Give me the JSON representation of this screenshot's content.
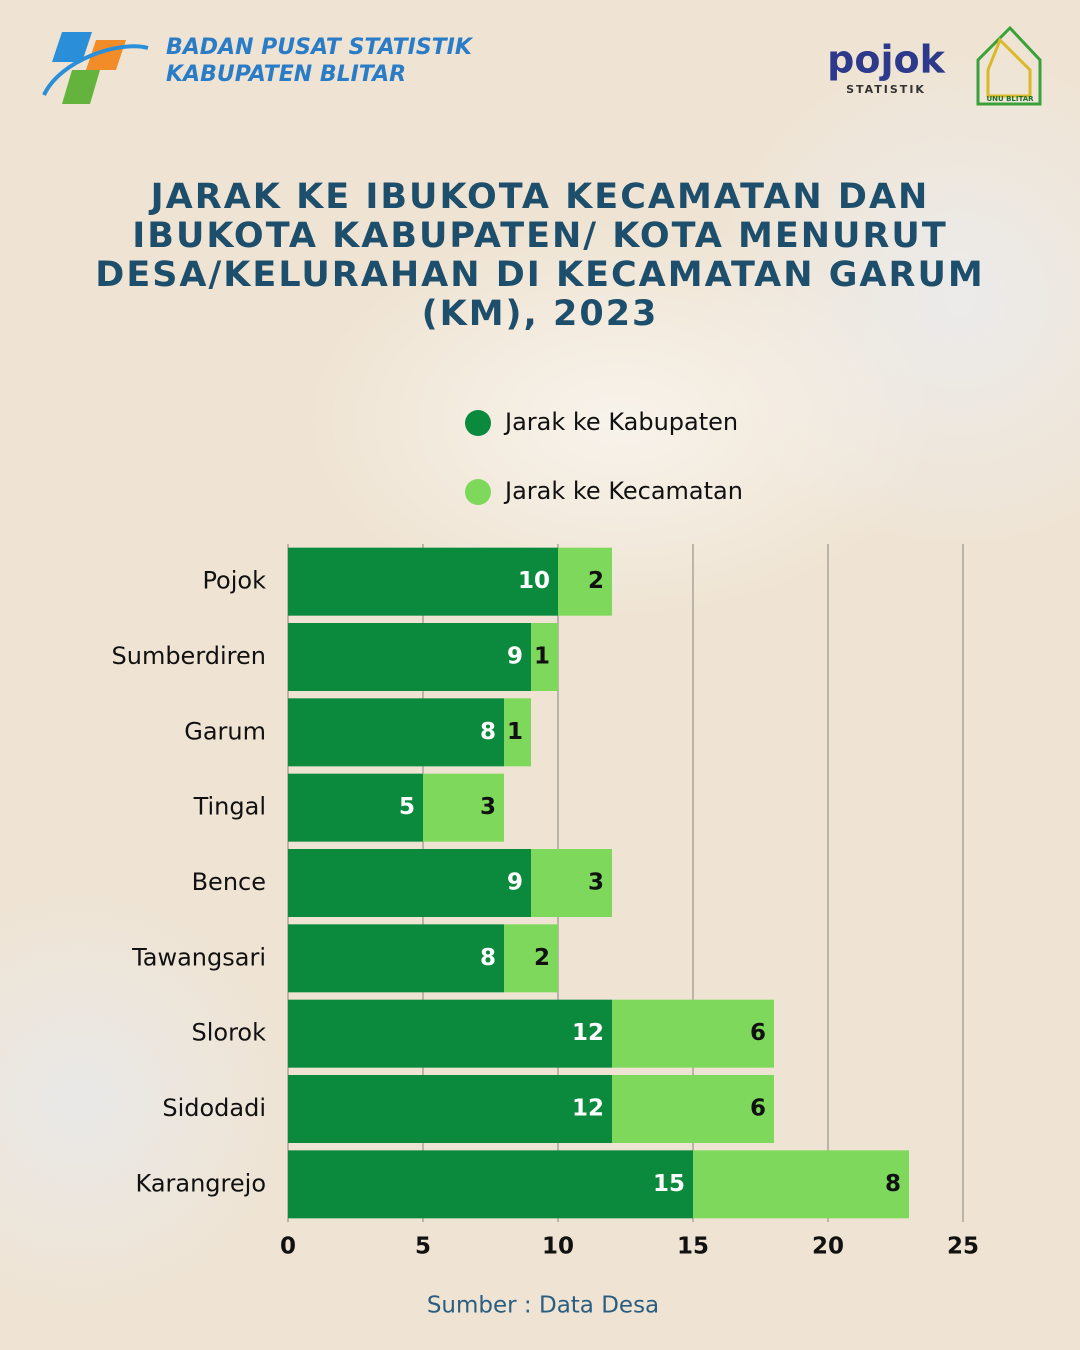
{
  "header": {
    "org_line1": "BADAN PUSAT STATISTIK",
    "org_line2": "KABUPATEN BLITAR",
    "partner_logo": "pojok",
    "partner_sub": "STATISTIK",
    "partner2": "UNU BLITAR"
  },
  "chart_data": {
    "type": "stacked-barh",
    "title": "JARAK KE IBUKOTA KECAMATAN DAN IBUKOTA KABUPATEN/ KOTA MENURUT DESA/KELURAHAN DI KECAMATAN GARUM (KM), 2023",
    "categories": [
      "Pojok",
      "Sumberdiren",
      "Garum",
      "Tingal",
      "Bence",
      "Tawangsari",
      "Slorok",
      "Sidodadi",
      "Karangrejo"
    ],
    "series": [
      {
        "name": "Jarak ke Kabupaten",
        "color": "#0b8a3e",
        "values": [
          10,
          9,
          8,
          5,
          9,
          8,
          12,
          12,
          15
        ]
      },
      {
        "name": "Jarak ke Kecamatan",
        "color": "#7ed85c",
        "values": [
          2,
          1,
          1,
          3,
          3,
          2,
          6,
          6,
          8
        ]
      }
    ],
    "xlim": [
      0,
      25
    ],
    "xticks": [
      0,
      5,
      10,
      15,
      20,
      25
    ],
    "grid": true,
    "source": "Sumber : Data Desa"
  }
}
